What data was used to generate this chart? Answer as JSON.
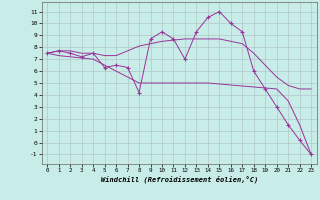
{
  "xlabel": "Windchill (Refroidissement éolien,°C)",
  "background_color": "#c8ece8",
  "grid_color": "#b0c8c8",
  "line_color": "#993399",
  "x_ticks": [
    0,
    1,
    2,
    3,
    4,
    5,
    6,
    7,
    8,
    9,
    10,
    11,
    12,
    13,
    14,
    15,
    16,
    17,
    18,
    19,
    20,
    21,
    22,
    23
  ],
  "y_ticks": [
    -1,
    0,
    1,
    2,
    3,
    4,
    5,
    6,
    7,
    8,
    9,
    10,
    11
  ],
  "ylim": [
    -1.8,
    11.8
  ],
  "xlim": [
    -0.5,
    23.5
  ],
  "line1_x": [
    0,
    1,
    2,
    3,
    4,
    5,
    6,
    7,
    8,
    9,
    10,
    11,
    12,
    13,
    14,
    15,
    16,
    17,
    18,
    19,
    20,
    21,
    22,
    23
  ],
  "line1_y": [
    7.5,
    7.7,
    7.5,
    7.2,
    7.5,
    6.3,
    6.5,
    6.3,
    4.2,
    8.7,
    9.3,
    8.7,
    7.0,
    9.3,
    10.5,
    11.0,
    10.0,
    9.3,
    6.0,
    4.5,
    3.0,
    1.5,
    0.2,
    -1.0
  ],
  "line2_x": [
    0,
    1,
    2,
    3,
    4,
    5,
    6,
    7,
    8,
    9,
    10,
    11,
    12,
    13,
    14,
    15,
    16,
    17,
    18,
    19,
    20,
    21,
    22,
    23
  ],
  "line2_y": [
    7.5,
    7.7,
    7.7,
    7.5,
    7.5,
    7.3,
    7.3,
    7.7,
    8.1,
    8.3,
    8.5,
    8.6,
    8.7,
    8.7,
    8.7,
    8.7,
    8.5,
    8.3,
    7.5,
    6.5,
    5.5,
    4.8,
    4.5,
    4.5
  ],
  "line3_x": [
    0,
    1,
    4,
    8,
    14,
    20,
    21,
    22,
    23
  ],
  "line3_y": [
    7.5,
    7.3,
    7.0,
    5.0,
    5.0,
    4.5,
    3.5,
    1.5,
    -1.0
  ]
}
